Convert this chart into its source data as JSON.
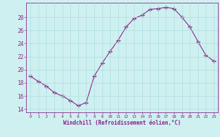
{
  "x": [
    0,
    1,
    2,
    3,
    4,
    5,
    6,
    7,
    8,
    9,
    10,
    11,
    12,
    13,
    14,
    15,
    16,
    17,
    18,
    19,
    20,
    21,
    22,
    23
  ],
  "y": [
    19.0,
    18.2,
    17.5,
    16.5,
    16.0,
    15.3,
    14.5,
    15.0,
    19.0,
    21.0,
    22.8,
    24.5,
    26.5,
    27.8,
    28.3,
    29.2,
    29.3,
    29.5,
    29.3,
    28.0,
    26.5,
    24.3,
    22.2,
    21.3
  ],
  "xlabel": "Windchill (Refroidissement éolien,°C)",
  "line_color": "#882288",
  "marker": "+",
  "marker_size": 4,
  "bg_color": "#cff0f0",
  "grid_color": "#aadddd",
  "tick_color": "#882288",
  "label_color": "#882288",
  "xlim": [
    -0.5,
    23.5
  ],
  "ylim": [
    13.5,
    30.2
  ],
  "yticks": [
    14,
    16,
    18,
    20,
    22,
    24,
    26,
    28
  ],
  "xticks": [
    0,
    1,
    2,
    3,
    4,
    5,
    6,
    7,
    8,
    9,
    10,
    11,
    12,
    13,
    14,
    15,
    16,
    17,
    18,
    19,
    20,
    21,
    22,
    23
  ],
  "figsize": [
    3.2,
    2.0
  ],
  "dpi": 100
}
